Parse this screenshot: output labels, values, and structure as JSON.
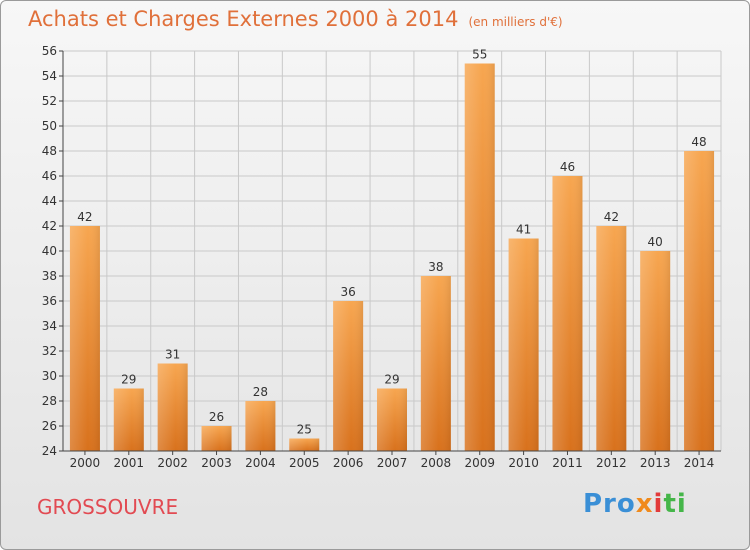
{
  "header": {
    "title": "Achats et Charges Externes 2000 à 2014",
    "subtitle": "(en milliers d'€)"
  },
  "footer": {
    "commune": "GROSSOUVRE",
    "logo": {
      "a": "Pro",
      "b": "x",
      "c": "i",
      "d": "ti"
    }
  },
  "colors": {
    "bar_top": "#f7a650",
    "bar_bottom": "#d8711c",
    "grid": "#c9c9c9",
    "axis": "#444444",
    "title": "#e0703a",
    "commune": "#e24a52"
  },
  "chart_data": {
    "type": "bar",
    "title": "Achats et Charges Externes 2000 à 2014",
    "subtitle": "(en milliers d'€)",
    "xlabel": "",
    "ylabel": "",
    "categories": [
      "2000",
      "2001",
      "2002",
      "2003",
      "2004",
      "2005",
      "2006",
      "2007",
      "2008",
      "2009",
      "2010",
      "2011",
      "2012",
      "2013",
      "2014"
    ],
    "values": [
      42,
      29,
      31,
      26,
      28,
      25,
      36,
      29,
      38,
      55,
      41,
      46,
      42,
      40,
      48
    ],
    "ylim": [
      24,
      56
    ],
    "yticks": [
      24,
      26,
      28,
      30,
      32,
      34,
      36,
      38,
      40,
      42,
      44,
      46,
      48,
      50,
      52,
      54,
      56
    ],
    "grid": true,
    "legend": "none"
  }
}
